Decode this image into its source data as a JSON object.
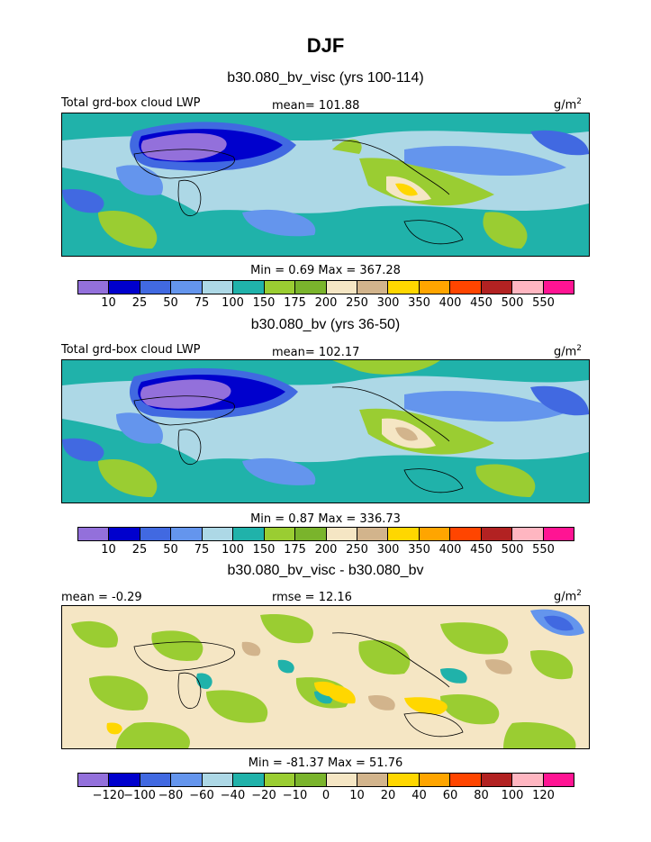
{
  "title": "DJF",
  "panels": [
    {
      "subtitle": "b30.080_bv_visc (yrs 100-114)",
      "left_label": "Total grd-box cloud LWP",
      "center_label": "mean= 101.88",
      "units_label": "g/m",
      "units_exp": "2",
      "stats": "Min =    0.69 Max = 367.28",
      "palette": "lwp"
    },
    {
      "subtitle": "b30.080_bv (yrs 36-50)",
      "left_label": "Total grd-box cloud LWP",
      "center_label": "mean= 102.17",
      "units_label": "g/m",
      "units_exp": "2",
      "stats": "Min =    0.87 Max = 336.73",
      "palette": "lwp"
    },
    {
      "subtitle": "b30.080_bv_visc - b30.080_bv",
      "left_label": "mean =   -0.29",
      "center_label": "rmse =   12.16",
      "units_label": "g/m",
      "units_exp": "2",
      "stats": "Min = -81.37 Max =  51.76",
      "palette": "diff"
    }
  ],
  "chart_data": [
    {
      "type": "heatmap",
      "title": "b30.080_bv_visc (yrs 100-114)",
      "variable": "Total grd-box cloud LWP",
      "units": "g/m2",
      "mean": 101.88,
      "min": 0.69,
      "max": 367.28,
      "contour_levels": [
        10,
        25,
        50,
        75,
        100,
        150,
        175,
        200,
        250,
        300,
        350,
        400,
        450,
        500,
        550
      ],
      "colors": [
        "#9370db",
        "#0000cd",
        "#4169e1",
        "#6495ed",
        "#add8e6",
        "#20b2aa",
        "#9acd32",
        "#7ab42c",
        "#f5e6c4",
        "#d2b48c",
        "#ffd700",
        "#ffa500",
        "#ff4500",
        "#b22222",
        "#ffb6c1",
        "#ff1493"
      ]
    },
    {
      "type": "heatmap",
      "title": "b30.080_bv (yrs 36-50)",
      "variable": "Total grd-box cloud LWP",
      "units": "g/m2",
      "mean": 102.17,
      "min": 0.87,
      "max": 336.73,
      "contour_levels": [
        10,
        25,
        50,
        75,
        100,
        150,
        175,
        200,
        250,
        300,
        350,
        400,
        450,
        500,
        550
      ],
      "colors": [
        "#9370db",
        "#0000cd",
        "#4169e1",
        "#6495ed",
        "#add8e6",
        "#20b2aa",
        "#9acd32",
        "#7ab42c",
        "#f5e6c4",
        "#d2b48c",
        "#ffd700",
        "#ffa500",
        "#ff4500",
        "#b22222",
        "#ffb6c1",
        "#ff1493"
      ]
    },
    {
      "type": "heatmap",
      "title": "b30.080_bv_visc - b30.080_bv",
      "units": "g/m2",
      "mean": -0.29,
      "rmse": 12.16,
      "min": -81.37,
      "max": 51.76,
      "contour_levels": [
        -120,
        -100,
        -80,
        -60,
        -40,
        -20,
        -10,
        0,
        10,
        20,
        40,
        60,
        80,
        100,
        120
      ],
      "colors": [
        "#9370db",
        "#0000cd",
        "#4169e1",
        "#6495ed",
        "#add8e6",
        "#20b2aa",
        "#9acd32",
        "#7ab42c",
        "#f5e6c4",
        "#d2b48c",
        "#ffd700",
        "#ffa500",
        "#ff4500",
        "#b22222",
        "#ffb6c1",
        "#ff1493"
      ]
    }
  ]
}
